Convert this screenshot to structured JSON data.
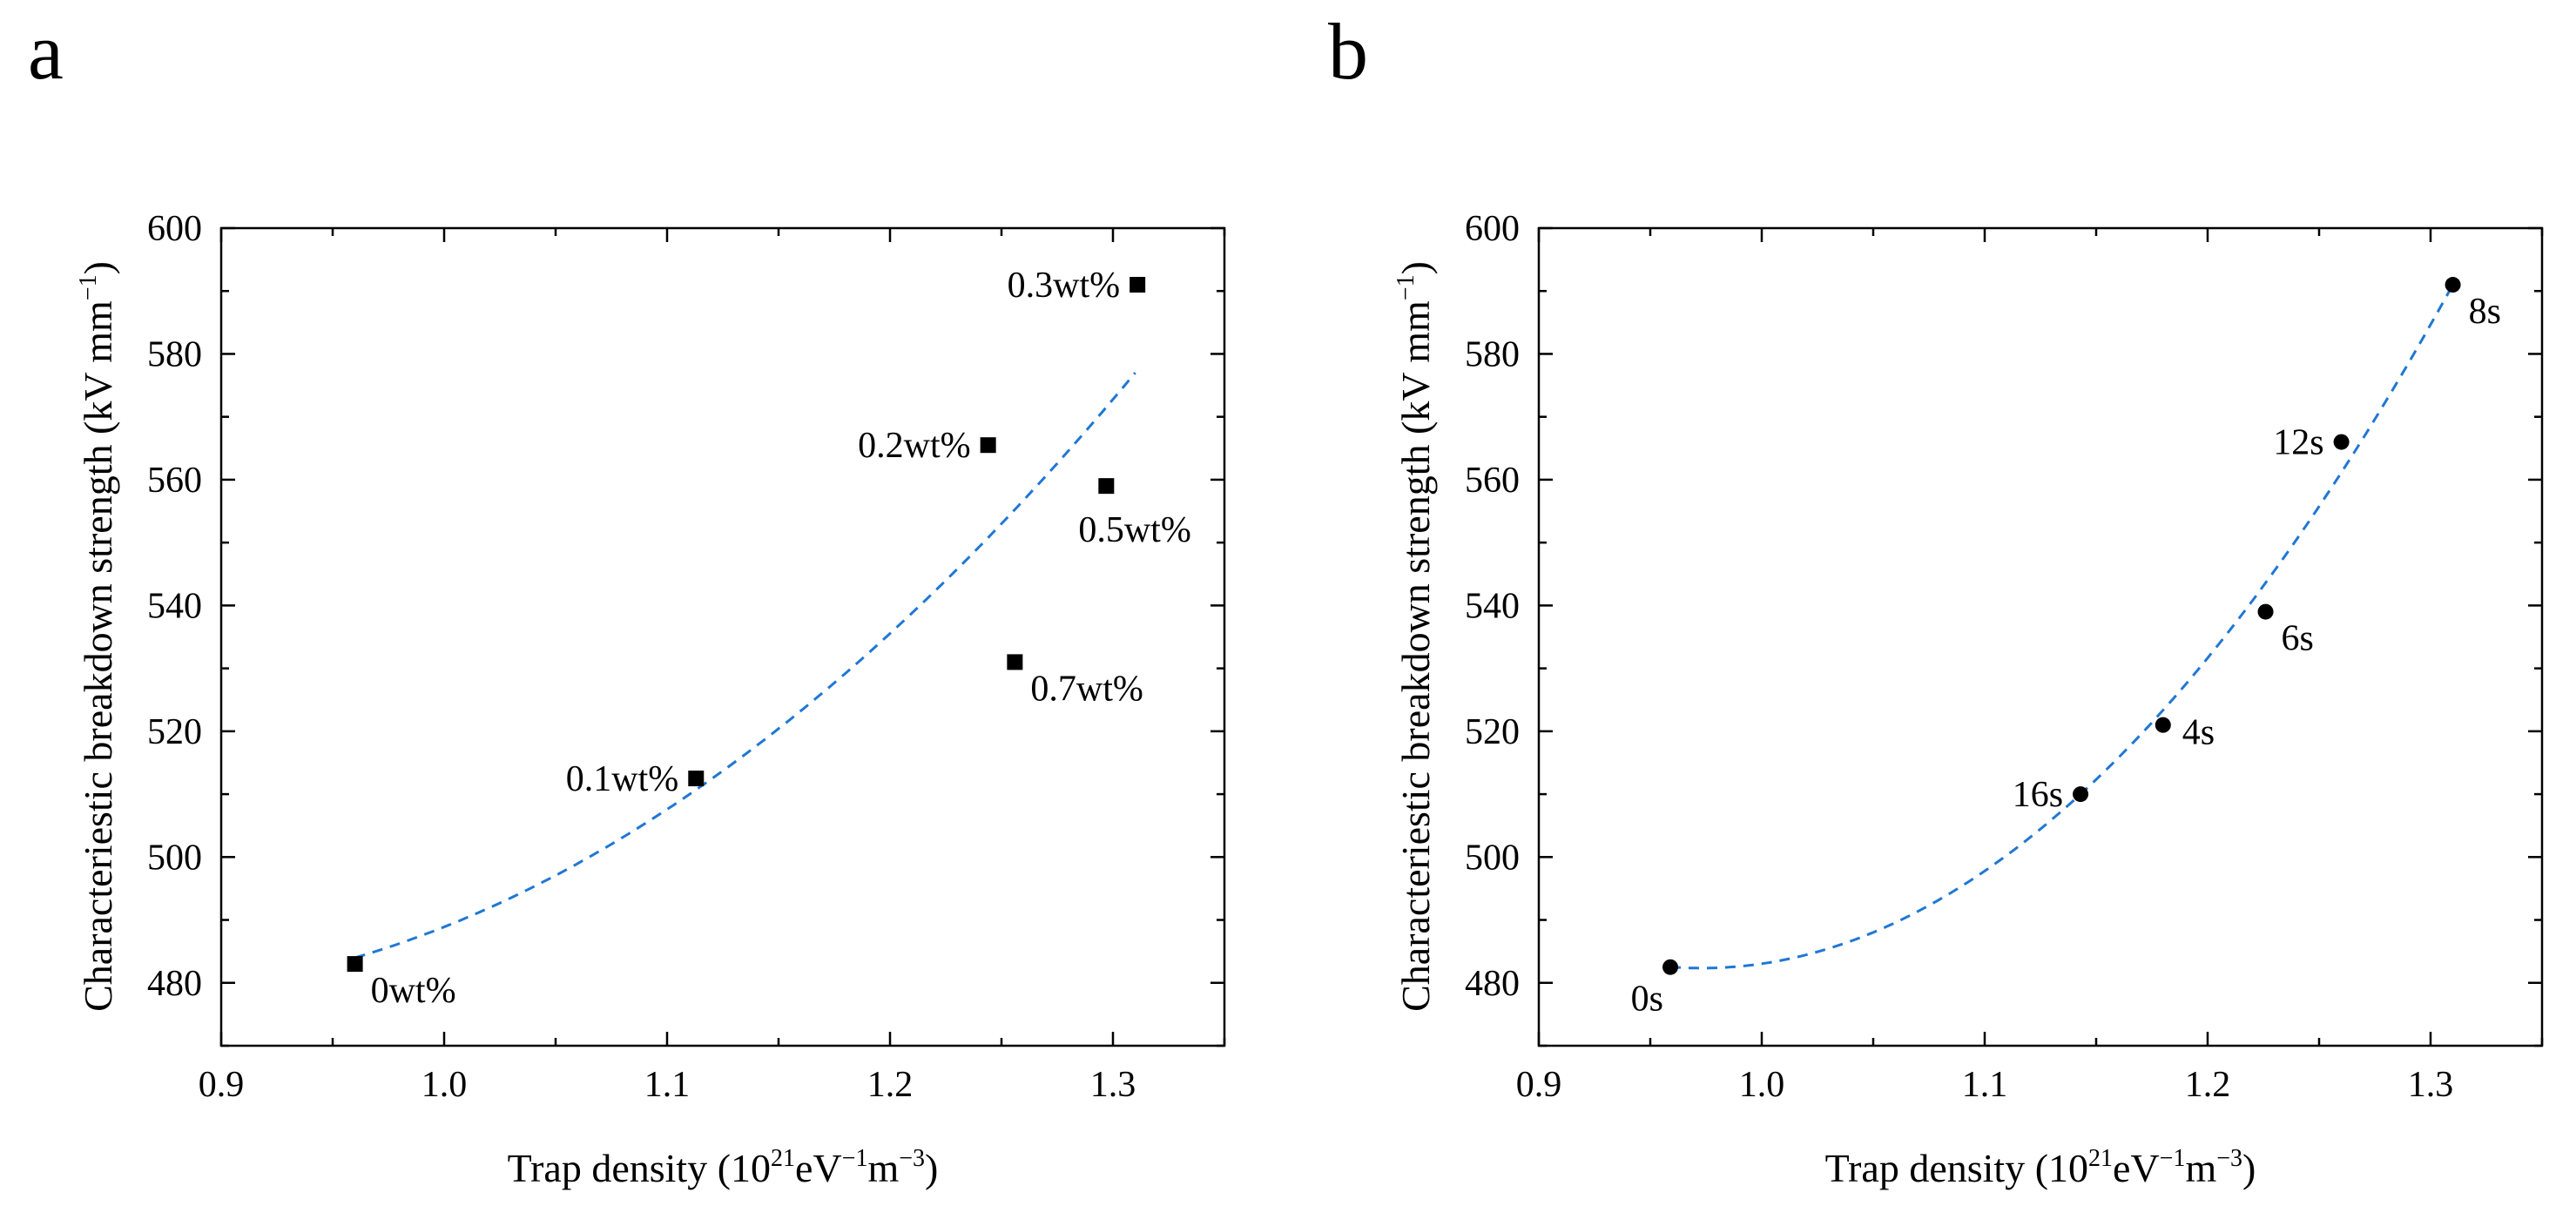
{
  "chart_data": [
    {
      "panel": "a",
      "type": "scatter",
      "marker": "square",
      "xlabel_base": "Trap density (10",
      "xlabel_sup1": "21",
      "xlabel_mid": "eV",
      "xlabel_sup2": "−1",
      "xlabel_mid2": "m",
      "xlabel_sup3": "−3",
      "xlabel_end": ")",
      "ylabel_base": "Characteriestic breakdown strength (kV mm",
      "ylabel_sup": "−1",
      "ylabel_end": ")",
      "xlim": [
        0.9,
        1.35
      ],
      "ylim": [
        470,
        600
      ],
      "xticks": [
        0.9,
        1.0,
        1.1,
        1.2,
        1.3
      ],
      "xtick_labels": [
        "0.9",
        "1.0",
        "1.1",
        "1.2",
        "1.3"
      ],
      "yticks": [
        480,
        500,
        520,
        540,
        560,
        580,
        600
      ],
      "ytick_labels": [
        "480",
        "500",
        "520",
        "540",
        "560",
        "580",
        "600"
      ],
      "points": [
        {
          "x": 0.96,
          "y": 483,
          "label": "0wt%",
          "label_pos": "below-right"
        },
        {
          "x": 1.113,
          "y": 512.5,
          "label": "0.1wt%",
          "label_pos": "left"
        },
        {
          "x": 1.244,
          "y": 565.5,
          "label": "0.2wt%",
          "label_pos": "left"
        },
        {
          "x": 1.311,
          "y": 591,
          "label": "0.3wt%",
          "label_pos": "left"
        },
        {
          "x": 1.297,
          "y": 559,
          "label": "0.5wt%",
          "label_pos": "below"
        },
        {
          "x": 1.256,
          "y": 531,
          "label": "0.7wt%",
          "label_pos": "below-right"
        }
      ],
      "fit": {
        "type": "quadratic",
        "color": "#1f77d4",
        "x_range": [
          0.96,
          1.31
        ],
        "points": [
          [
            0.96,
            484
          ],
          [
            1.13,
            515
          ],
          [
            1.31,
            577
          ]
        ]
      }
    },
    {
      "panel": "b",
      "type": "scatter",
      "marker": "circle",
      "xlabel_base": "Trap density (10",
      "xlabel_sup1": "21",
      "xlabel_mid": "eV",
      "xlabel_sup2": "−1",
      "xlabel_mid2": "m",
      "xlabel_sup3": "−3",
      "xlabel_end": ")",
      "ylabel_base": "Characteriestic breakdown strength (kV mm",
      "ylabel_sup": "−1",
      "ylabel_end": ")",
      "xlim": [
        0.9,
        1.35
      ],
      "ylim": [
        470,
        600
      ],
      "xticks": [
        0.9,
        1.0,
        1.1,
        1.2,
        1.3
      ],
      "xtick_labels": [
        "0.9",
        "1.0",
        "1.1",
        "1.2",
        "1.3"
      ],
      "yticks": [
        480,
        500,
        520,
        540,
        560,
        580,
        600
      ],
      "ytick_labels": [
        "480",
        "500",
        "520",
        "540",
        "560",
        "580",
        "600"
      ],
      "points": [
        {
          "x": 0.959,
          "y": 482.5,
          "label": "0s",
          "label_pos": "below-left"
        },
        {
          "x": 1.143,
          "y": 510,
          "label": "16s",
          "label_pos": "left"
        },
        {
          "x": 1.18,
          "y": 521,
          "label": "4s",
          "label_pos": "right"
        },
        {
          "x": 1.226,
          "y": 539,
          "label": "6s",
          "label_pos": "below-right"
        },
        {
          "x": 1.26,
          "y": 566,
          "label": "12s",
          "label_pos": "left"
        },
        {
          "x": 1.31,
          "y": 591,
          "label": "8s",
          "label_pos": "below-right"
        }
      ],
      "fit": {
        "type": "quadratic",
        "color": "#1f77d4",
        "x_range": [
          0.959,
          1.31
        ],
        "points": [
          [
            0.96,
            482.5
          ],
          [
            1.143,
            510
          ],
          [
            1.31,
            591
          ]
        ]
      }
    }
  ]
}
